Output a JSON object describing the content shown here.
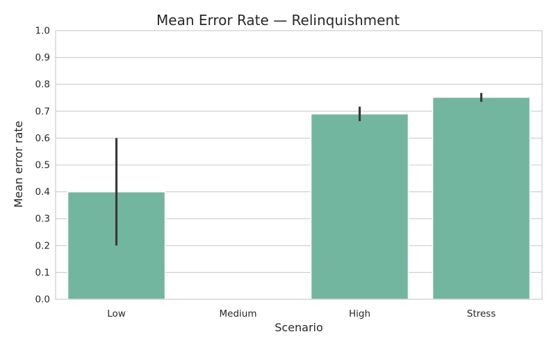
{
  "chart_data": {
    "type": "bar",
    "title": "Mean Error Rate — Relinquishment",
    "xlabel": "Scenario",
    "ylabel": "Mean error rate",
    "categories": [
      "Low",
      "Medium",
      "High",
      "Stress"
    ],
    "values": [
      0.4,
      null,
      0.69,
      0.752
    ],
    "error_low": [
      0.2,
      null,
      0.663,
      0.735
    ],
    "error_high": [
      0.6,
      null,
      0.717,
      0.768
    ],
    "ylim": [
      0,
      1.0
    ],
    "yticks": [
      "0.0",
      "0.1",
      "0.2",
      "0.3",
      "0.4",
      "0.5",
      "0.6",
      "0.7",
      "0.8",
      "0.9",
      "1.0"
    ],
    "grid": true,
    "colors": {
      "bar": "#73b6a0",
      "bar_edge": "#ffffff",
      "error_bar": "#3a3a3a",
      "grid": "#cccccc",
      "frame": "#cccccc",
      "text": "#262626"
    }
  }
}
